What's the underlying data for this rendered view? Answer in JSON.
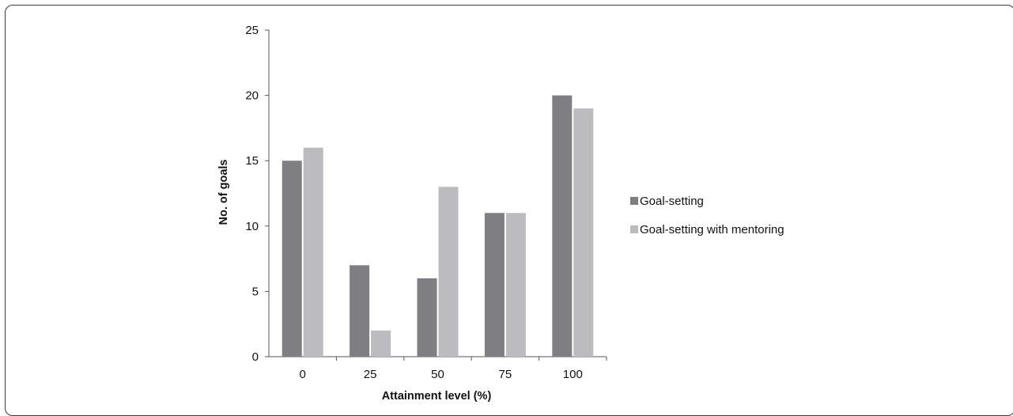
{
  "chart_data": {
    "type": "bar",
    "title": "",
    "xlabel": "Attainment level (%)",
    "ylabel": "No. of goals",
    "categories": [
      "0",
      "25",
      "50",
      "75",
      "100"
    ],
    "series": [
      {
        "name": "Goal-setting",
        "values": [
          15,
          7,
          6,
          11,
          20
        ],
        "color": "#7f7f83"
      },
      {
        "name": "Goal-setting with mentoring",
        "values": [
          16,
          2,
          13,
          11,
          19
        ],
        "color": "#bcbcc0"
      }
    ],
    "yticks": [
      "0",
      "5",
      "10",
      "15",
      "20",
      "25"
    ],
    "ylim": [
      0,
      25
    ],
    "grid": false,
    "legend_position": "right"
  }
}
